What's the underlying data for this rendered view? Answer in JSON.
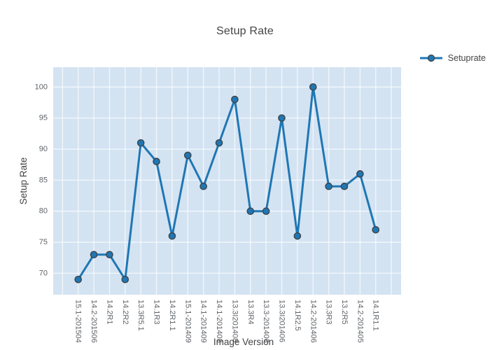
{
  "title": "Setup Rate",
  "legend": {
    "items": [
      {
        "label": "Setuprate"
      }
    ]
  },
  "colors": {
    "accent": "#1f77b4",
    "marker_outline": "#3d444b",
    "plot_bg": "#d4e3f2",
    "grid": "#ffffff",
    "text": "#444444",
    "tick_text": "#5f6368"
  },
  "chart_data": {
    "type": "line",
    "title": "Setup Rate",
    "xlabel": "Image Version",
    "ylabel": "Setup Rate",
    "legend_position": "top-right",
    "grid": true,
    "categories": [
      "15.1-201504",
      "14.2-201506",
      "14.2R1",
      "14.2R2",
      "13.3R5.1",
      "14.1R3",
      "14.2R1.1",
      "15.1-201409",
      "14.1-201409",
      "14.1-201408",
      "13.3I201408",
      "13.3R4",
      "13.3-201406",
      "13.3I201406",
      "14.1R2.5",
      "14.2-201406",
      "13.3R3",
      "13.2R5",
      "14.2-201405",
      "14.1R1.1"
    ],
    "series": [
      {
        "name": "Setuprate",
        "values": [
          69,
          73,
          73,
          69,
          91,
          88,
          76,
          89,
          84,
          91,
          98,
          80,
          80,
          95,
          76,
          100,
          84,
          84,
          86,
          77
        ]
      }
    ],
    "yticks": [
      70,
      75,
      80,
      85,
      90,
      95,
      100
    ],
    "ylim": [
      66.55,
      103.19
    ]
  }
}
